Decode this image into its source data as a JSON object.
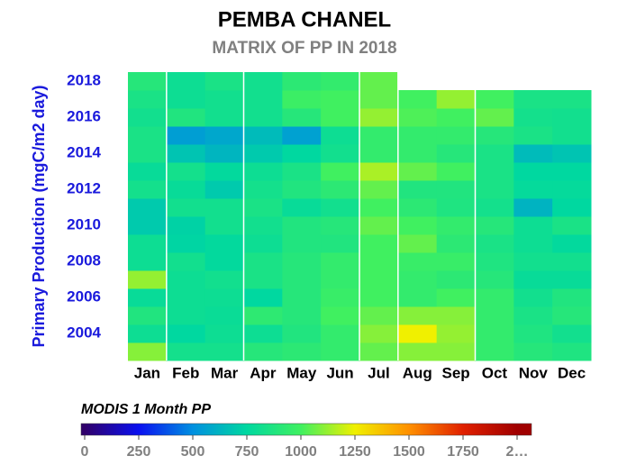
{
  "chart_data": {
    "type": "heatmap",
    "title": "PEMBA CHANEL",
    "subtitle": "MATRIX OF PP IN 2018",
    "y_label": "Primary Production (mgC/m2 day)",
    "colorbar_title": "MODIS 1 Month PP",
    "x": [
      "Jan",
      "Feb",
      "Mar",
      "Apr",
      "May",
      "Jun",
      "Jul",
      "Aug",
      "Sep",
      "Oct",
      "Nov",
      "Dec"
    ],
    "y": [
      2003,
      2004,
      2005,
      2006,
      2007,
      2008,
      2009,
      2010,
      2011,
      2012,
      2013,
      2014,
      2015,
      2016,
      2017,
      2018
    ],
    "ylim": [
      2002.5,
      2018.5
    ],
    "yticks": [
      2004,
      2006,
      2008,
      2010,
      2012,
      2014,
      2016,
      2018
    ],
    "values": [
      [
        1100,
        830,
        830,
        900,
        920,
        950,
        1050,
        1100,
        1100,
        950,
        900,
        870
      ],
      [
        800,
        750,
        800,
        800,
        880,
        950,
        1100,
        1250,
        1120,
        950,
        870,
        820
      ],
      [
        880,
        800,
        790,
        930,
        900,
        1000,
        1050,
        1100,
        1100,
        950,
        850,
        900
      ],
      [
        780,
        800,
        800,
        750,
        900,
        970,
        1000,
        950,
        1000,
        950,
        820,
        880
      ],
      [
        1120,
        800,
        820,
        850,
        900,
        950,
        1000,
        950,
        920,
        900,
        780,
        780
      ],
      [
        800,
        820,
        760,
        850,
        900,
        950,
        1000,
        970,
        970,
        870,
        820,
        820
      ],
      [
        800,
        740,
        760,
        800,
        880,
        880,
        1000,
        1050,
        920,
        850,
        800,
        760
      ],
      [
        700,
        730,
        820,
        820,
        880,
        900,
        1050,
        1000,
        950,
        900,
        800,
        850
      ],
      [
        700,
        820,
        820,
        850,
        780,
        820,
        1000,
        920,
        870,
        830,
        620,
        750
      ],
      [
        830,
        780,
        700,
        830,
        880,
        920,
        1050,
        880,
        880,
        850,
        770,
        770
      ],
      [
        780,
        830,
        760,
        800,
        850,
        1000,
        1150,
        1050,
        1000,
        850,
        750,
        750
      ],
      [
        850,
        680,
        630,
        700,
        750,
        820,
        950,
        950,
        900,
        850,
        650,
        680
      ],
      [
        850,
        550,
        580,
        650,
        560,
        800,
        950,
        950,
        950,
        900,
        850,
        820
      ],
      [
        820,
        880,
        820,
        820,
        900,
        1000,
        1120,
        1020,
        1000,
        1050,
        830,
        820
      ],
      [
        850,
        800,
        820,
        820,
        980,
        1000,
        1050,
        1000,
        1120,
        1000,
        850,
        850
      ],
      [
        900,
        800,
        850,
        820,
        920,
        950,
        1050,
        null,
        null,
        null,
        null,
        null
      ]
    ],
    "clim": [
      0,
      2000
    ],
    "cticks": [
      0,
      250,
      500,
      750,
      1000,
      1250,
      1500,
      1750,
      {
        "value": 2000,
        "label": "2…"
      }
    ],
    "colorscale": [
      "#30006a",
      "#0a10f0",
      "#0090e0",
      "#00d8a0",
      "#40f060",
      "#f0f000",
      "#ff9000",
      "#e02000",
      "#a00000"
    ]
  }
}
